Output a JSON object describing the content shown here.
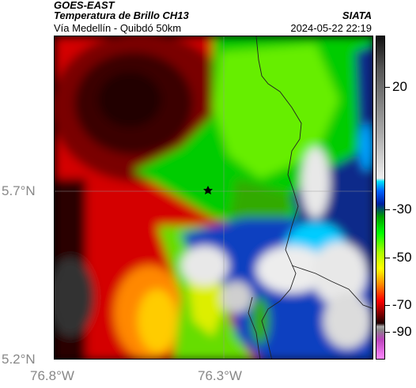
{
  "header": {
    "satellite": "GOES-EAST",
    "product": "Temperatura de Brillo CH13",
    "route": "Vía Medellín - Quibdó 50km",
    "org": "SIATA",
    "timestamp": "2024-05-22 22:19"
  },
  "map": {
    "lat_labels": [
      "5.7°N",
      "5.2°N"
    ],
    "lon_labels": [
      "76.8°W",
      "76.3°W"
    ],
    "marker": "star-marker"
  },
  "colorbar": {
    "labels": [
      "20",
      "-30",
      "-50",
      "-70",
      "-90"
    ],
    "colors": [
      "#111111",
      "#cccccc",
      "#00bfff",
      "#00dd00",
      "#ffff00",
      "#ff0000",
      "#550000",
      "#bb44bb"
    ]
  }
}
